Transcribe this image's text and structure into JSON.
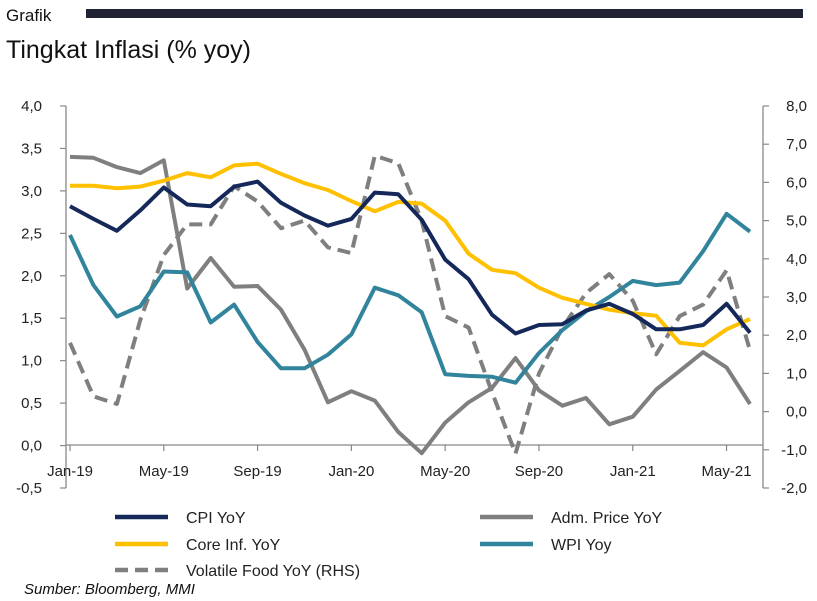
{
  "header": {
    "label": "Grafik"
  },
  "chart_data": {
    "type": "line",
    "title": "Tingkat Inflasi (% yoy)",
    "source": "Sumber: Bloomberg, MMI",
    "x_tick_labels": [
      "Jan-19",
      "May-19",
      "Sep-19",
      "Jan-20",
      "May-20",
      "Sep-20",
      "Jan-21",
      "May-21"
    ],
    "x_tick_index": [
      0,
      4,
      8,
      12,
      16,
      20,
      24,
      28
    ],
    "n_points": 30,
    "y_left": {
      "ylim": [
        -0.5,
        4.0
      ],
      "ticks": [
        "4,0",
        "3,5",
        "3,0",
        "2,5",
        "2,0",
        "1,5",
        "1,0",
        "0,5",
        "0,0",
        "-0,5"
      ],
      "tick_values": [
        4.0,
        3.5,
        3.0,
        2.5,
        2.0,
        1.5,
        1.0,
        0.5,
        0.0,
        -0.5
      ]
    },
    "y_right": {
      "ylim": [
        -2.0,
        8.0
      ],
      "ticks": [
        "8,0",
        "7,0",
        "6,0",
        "5,0",
        "4,0",
        "3,0",
        "2,0",
        "1,0",
        "0,0",
        "-1,0",
        "-2,0"
      ],
      "tick_values": [
        8,
        7,
        6,
        5,
        4,
        3,
        2,
        1,
        0,
        -1,
        -2
      ]
    },
    "grid": false,
    "legend_position": "bottom",
    "series": [
      {
        "name": "CPI YoY",
        "axis": "left",
        "color": "#14285a",
        "dash": false,
        "values": [
          2.82,
          2.67,
          2.53,
          2.77,
          3.04,
          2.84,
          2.82,
          3.05,
          3.11,
          2.86,
          2.71,
          2.59,
          2.67,
          2.98,
          2.96,
          2.66,
          2.19,
          1.96,
          1.54,
          1.32,
          1.42,
          1.43,
          1.59,
          1.67,
          1.55,
          1.37,
          1.37,
          1.42,
          1.67,
          1.33
        ]
      },
      {
        "name": "Adm. Price YoY",
        "axis": "left",
        "color": "#7f7f7f",
        "dash": false,
        "values": [
          3.4,
          3.39,
          3.28,
          3.21,
          3.36,
          1.85,
          2.21,
          1.87,
          1.88,
          1.6,
          1.13,
          0.51,
          0.64,
          0.53,
          0.16,
          -0.09,
          0.27,
          0.51,
          0.68,
          1.03,
          0.65,
          0.47,
          0.56,
          0.25,
          0.34,
          0.66,
          0.88,
          1.1,
          0.92,
          0.49
        ]
      },
      {
        "name": "Core Inf. YoY",
        "axis": "left",
        "color": "#ffc000",
        "dash": false,
        "values": [
          3.06,
          3.06,
          3.03,
          3.05,
          3.12,
          3.21,
          3.16,
          3.3,
          3.32,
          3.2,
          3.09,
          3.01,
          2.88,
          2.76,
          2.87,
          2.85,
          2.65,
          2.26,
          2.07,
          2.03,
          1.86,
          1.74,
          1.67,
          1.6,
          1.56,
          1.53,
          1.21,
          1.18,
          1.37,
          1.49
        ]
      },
      {
        "name": "WPI Yoy",
        "axis": "left",
        "color": "#31849b",
        "dash": false,
        "values": [
          2.48,
          1.89,
          1.52,
          1.64,
          2.05,
          2.04,
          1.45,
          1.66,
          1.22,
          0.91,
          0.91,
          1.07,
          1.31,
          1.86,
          1.77,
          1.57,
          0.84,
          0.82,
          0.81,
          0.74,
          1.09,
          1.36,
          1.58,
          1.75,
          1.94,
          1.89,
          1.92,
          2.29,
          2.73,
          2.52
        ]
      },
      {
        "name": "Volatile Food YoY (RHS)",
        "axis": "right",
        "color": "#7f7f7f",
        "dash": true,
        "values": [
          1.8,
          0.4,
          0.2,
          2.4,
          4.1,
          4.9,
          4.9,
          5.9,
          5.5,
          4.8,
          5.0,
          4.3,
          4.15,
          6.7,
          6.5,
          5.0,
          2.5,
          2.2,
          0.5,
          -1.1,
          1.0,
          2.2,
          3.1,
          3.6,
          2.9,
          1.5,
          2.5,
          2.8,
          3.7,
          1.6
        ]
      }
    ]
  }
}
